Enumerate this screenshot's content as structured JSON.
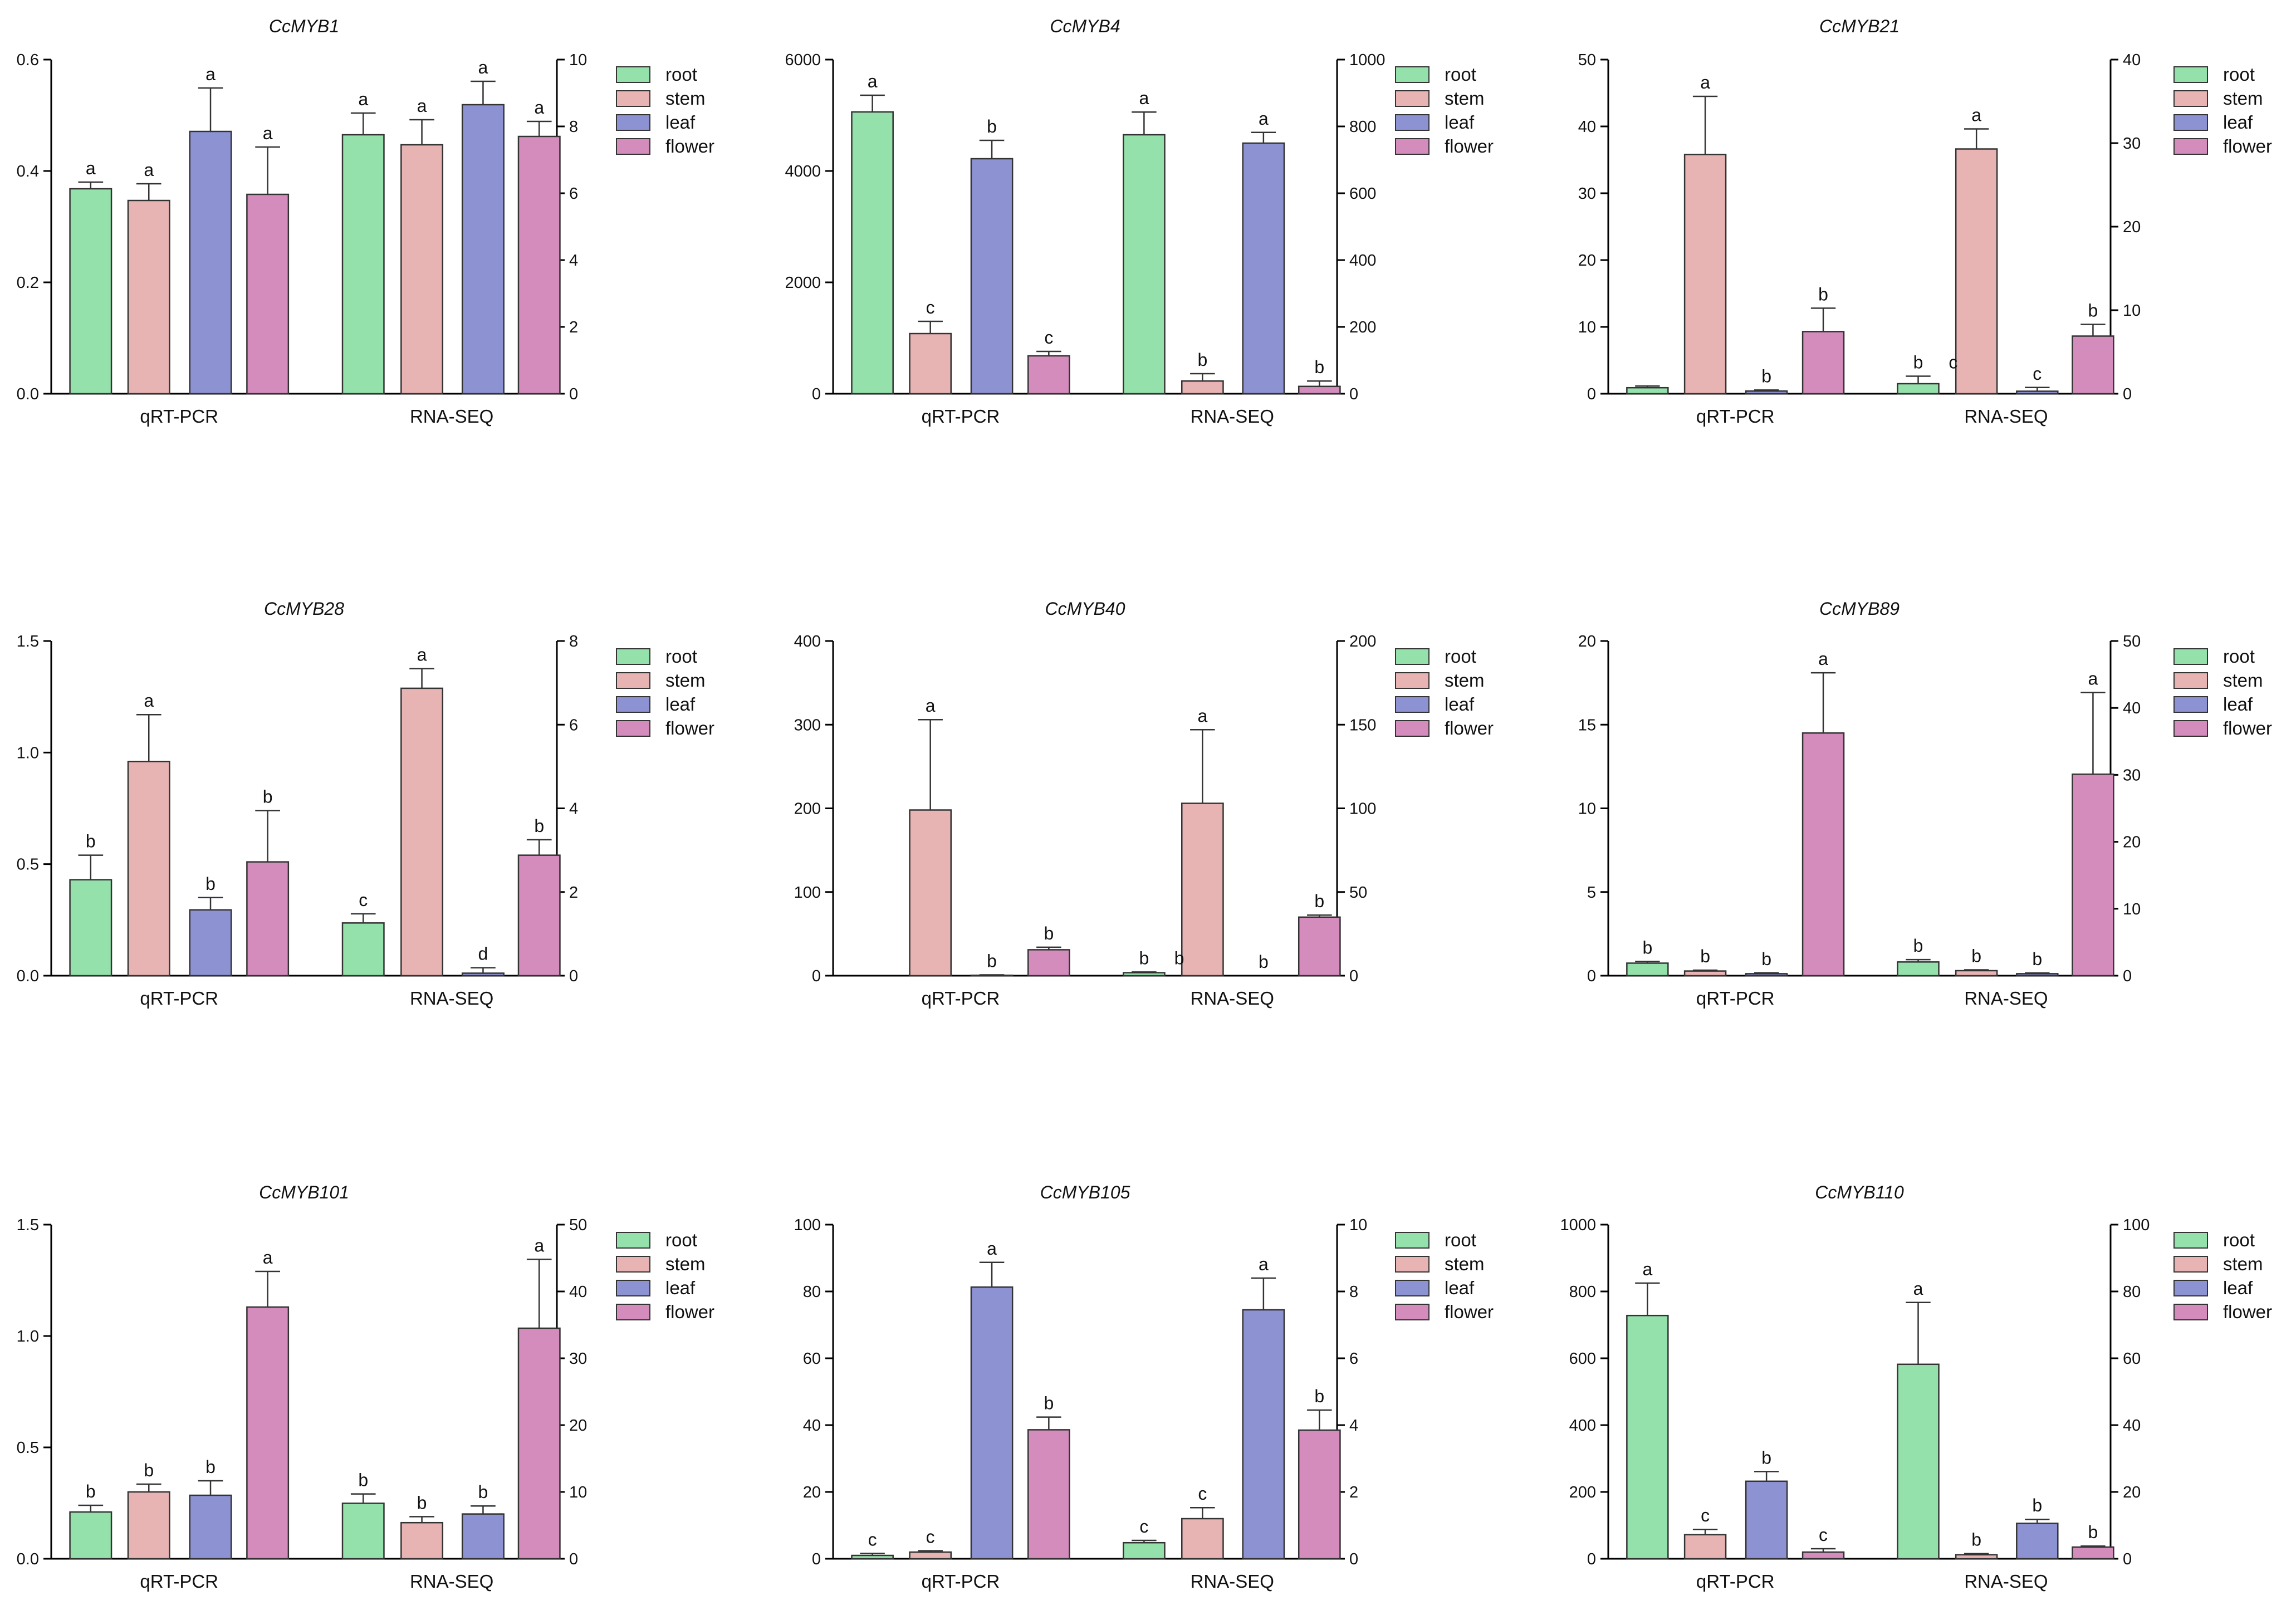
{
  "chart_data": [
    {
      "type": "bar",
      "title": "CcMYB1",
      "group_labels": [
        "qRT-PCR",
        "RNA-SEQ"
      ],
      "y_left": {
        "lim": [
          0,
          0.6
        ],
        "ticks": [
          "0.0",
          "0.2",
          "0.4",
          "0.6"
        ]
      },
      "y_right": {
        "lim": [
          0,
          10
        ],
        "ticks": [
          "0",
          "2",
          "4",
          "6",
          "8",
          "10"
        ]
      },
      "groups": [
        {
          "values": [
            0.368,
            0.347,
            0.471,
            0.358
          ],
          "errors": [
            0.012,
            0.03,
            0.078,
            0.085
          ],
          "letters": [
            "a",
            "a",
            "a",
            "a"
          ]
        },
        {
          "values": [
            7.75,
            7.45,
            8.65,
            7.7
          ],
          "errors": [
            0.65,
            0.75,
            0.7,
            0.45
          ],
          "letters": [
            "a",
            "a",
            "a",
            "a"
          ]
        }
      ]
    },
    {
      "type": "bar",
      "title": "CcMYB4",
      "group_labels": [
        "qRT-PCR",
        "RNA-SEQ"
      ],
      "y_left": {
        "lim": [
          0,
          6000
        ],
        "ticks": [
          "0",
          "2000",
          "4000",
          "6000"
        ]
      },
      "y_right": {
        "lim": [
          0,
          1000
        ],
        "ticks": [
          "0",
          "200",
          "400",
          "600",
          "800",
          "1000"
        ]
      },
      "groups": [
        {
          "values": [
            5060,
            1080,
            4220,
            680
          ],
          "errors": [
            300,
            220,
            330,
            80
          ],
          "letters": [
            "a",
            "c",
            "b",
            "c"
          ]
        },
        {
          "values": [
            775,
            38,
            750,
            22
          ],
          "errors": [
            68,
            22,
            32,
            16
          ],
          "letters": [
            "a",
            "b",
            "a",
            "b"
          ]
        }
      ]
    },
    {
      "type": "bar",
      "title": "CcMYB21",
      "group_labels": [
        "qRT-PCR",
        "RNA-SEQ"
      ],
      "y_left": {
        "lim": [
          0,
          50
        ],
        "ticks": [
          "0",
          "10",
          "20",
          "30",
          "40",
          "50"
        ]
      },
      "y_right": {
        "lim": [
          0,
          40
        ],
        "ticks": [
          "0",
          "10",
          "20",
          "30",
          "40"
        ]
      },
      "groups": [
        {
          "values": [
            0.9,
            35.8,
            0.4,
            9.3
          ],
          "errors": [
            0.25,
            8.7,
            0.15,
            3.5
          ],
          "letters": [
            "",
            "a",
            "b",
            "b"
          ]
        },
        {
          "values": [
            1.2,
            29.3,
            0.3,
            6.9
          ],
          "errors": [
            0.9,
            2.4,
            0.45,
            1.4
          ],
          "letters": [
            "b",
            "a",
            "c",
            "b"
          ],
          "extra_letter": "c"
        }
      ]
    },
    {
      "type": "bar",
      "title": "CcMYB28",
      "group_labels": [
        "qRT-PCR",
        "RNA-SEQ"
      ],
      "y_left": {
        "lim": [
          0,
          1.5
        ],
        "ticks": [
          "0.0",
          "0.5",
          "1.0",
          "1.5"
        ]
      },
      "y_right": {
        "lim": [
          0,
          8
        ],
        "ticks": [
          "0",
          "2",
          "4",
          "6",
          "8"
        ]
      },
      "groups": [
        {
          "values": [
            0.43,
            0.96,
            0.295,
            0.51
          ],
          "errors": [
            0.11,
            0.21,
            0.055,
            0.23
          ],
          "letters": [
            "b",
            "a",
            "b",
            "b"
          ]
        },
        {
          "values": [
            1.26,
            6.87,
            0.06,
            2.88
          ],
          "errors": [
            0.22,
            0.47,
            0.13,
            0.37
          ],
          "letters": [
            "c",
            "a",
            "d",
            "b"
          ]
        }
      ]
    },
    {
      "type": "bar",
      "title": "CcMYB40",
      "group_labels": [
        "qRT-PCR",
        "RNA-SEQ"
      ],
      "y_left": {
        "lim": [
          0,
          400
        ],
        "ticks": [
          "0",
          "100",
          "200",
          "300",
          "400"
        ]
      },
      "y_right": {
        "lim": [
          0,
          200
        ],
        "ticks": [
          "0",
          "50",
          "100",
          "150",
          "200"
        ]
      },
      "groups": [
        {
          "values": [
            0,
            198,
            0.5,
            31
          ],
          "errors": [
            0,
            108,
            0.5,
            3
          ],
          "letters": [
            "",
            "a",
            "b",
            "b"
          ]
        },
        {
          "values": [
            1.8,
            103,
            0,
            35
          ],
          "errors": [
            0.4,
            44,
            0,
            1.2
          ],
          "letters": [
            "b",
            "a",
            "b",
            "b"
          ],
          "extra_letter": "b"
        }
      ]
    },
    {
      "type": "bar",
      "title": "CcMYB89",
      "group_labels": [
        "qRT-PCR",
        "RNA-SEQ"
      ],
      "y_left": {
        "lim": [
          0,
          20
        ],
        "ticks": [
          "0",
          "5",
          "10",
          "15",
          "20"
        ]
      },
      "y_right": {
        "lim": [
          0,
          50
        ],
        "ticks": [
          "0",
          "10",
          "20",
          "30",
          "40",
          "50"
        ]
      },
      "groups": [
        {
          "values": [
            0.75,
            0.28,
            0.12,
            14.5
          ],
          "errors": [
            0.1,
            0.05,
            0.05,
            3.6
          ],
          "letters": [
            "b",
            "b",
            "b",
            "a"
          ]
        },
        {
          "values": [
            2.05,
            0.75,
            0.3,
            30.1
          ],
          "errors": [
            0.35,
            0.12,
            0.1,
            12.2
          ],
          "letters": [
            "b",
            "b",
            "b",
            "a"
          ]
        }
      ]
    },
    {
      "type": "bar",
      "title": "CcMYB101",
      "group_labels": [
        "qRT-PCR",
        "RNA-SEQ"
      ],
      "y_left": {
        "lim": [
          0,
          1.5
        ],
        "ticks": [
          "0.0",
          "0.5",
          "1.0",
          "1.5"
        ]
      },
      "y_right": {
        "lim": [
          0,
          50
        ],
        "ticks": [
          "0",
          "10",
          "20",
          "30",
          "40",
          "50"
        ]
      },
      "groups": [
        {
          "values": [
            0.21,
            0.3,
            0.285,
            1.13
          ],
          "errors": [
            0.03,
            0.035,
            0.065,
            0.16
          ],
          "letters": [
            "b",
            "b",
            "b",
            "a"
          ]
        },
        {
          "values": [
            8.3,
            5.4,
            6.7,
            34.5
          ],
          "errors": [
            1.4,
            0.9,
            1.2,
            10.3
          ],
          "letters": [
            "b",
            "b",
            "b",
            "a"
          ]
        }
      ]
    },
    {
      "type": "bar",
      "title": "CcMYB105",
      "group_labels": [
        "qRT-PCR",
        "RNA-SEQ"
      ],
      "y_left": {
        "lim": [
          0,
          100
        ],
        "ticks": [
          "0",
          "20",
          "40",
          "60",
          "80",
          "100"
        ]
      },
      "y_right": {
        "lim": [
          0,
          10
        ],
        "ticks": [
          "0",
          "2",
          "4",
          "6",
          "8",
          "10"
        ]
      },
      "groups": [
        {
          "values": [
            1.0,
            2.0,
            81.3,
            38.6
          ],
          "errors": [
            0.6,
            0.4,
            7.4,
            3.8
          ],
          "letters": [
            "c",
            "c",
            "a",
            "b"
          ]
        },
        {
          "values": [
            0.48,
            1.2,
            7.45,
            3.85
          ],
          "errors": [
            0.07,
            0.33,
            0.95,
            0.6
          ],
          "letters": [
            "c",
            "c",
            "a",
            "b"
          ]
        }
      ]
    },
    {
      "type": "bar",
      "title": "CcMYB110",
      "group_labels": [
        "qRT-PCR",
        "RNA-SEQ"
      ],
      "y_left": {
        "lim": [
          0,
          1000
        ],
        "ticks": [
          "0",
          "200",
          "400",
          "600",
          "800",
          "1000"
        ]
      },
      "y_right": {
        "lim": [
          0,
          100
        ],
        "ticks": [
          "0",
          "20",
          "40",
          "60",
          "80",
          "100"
        ]
      },
      "groups": [
        {
          "values": [
            728,
            72,
            232,
            20
          ],
          "errors": [
            97,
            16,
            29,
            10
          ],
          "letters": [
            "a",
            "c",
            "b",
            "c"
          ]
        },
        {
          "values": [
            58.2,
            1.2,
            10.6,
            3.5
          ],
          "errors": [
            18.5,
            0.35,
            1.2,
            0.3
          ],
          "letters": [
            "a",
            "b",
            "b",
            "b"
          ]
        }
      ]
    }
  ],
  "legend": {
    "items": [
      {
        "label": "root",
        "color": "#95e1ab"
      },
      {
        "label": "stem",
        "color": "#e8b3b3"
      },
      {
        "label": "leaf",
        "color": "#8c92d2"
      },
      {
        "label": "flower",
        "color": "#d48cbc"
      }
    ]
  }
}
